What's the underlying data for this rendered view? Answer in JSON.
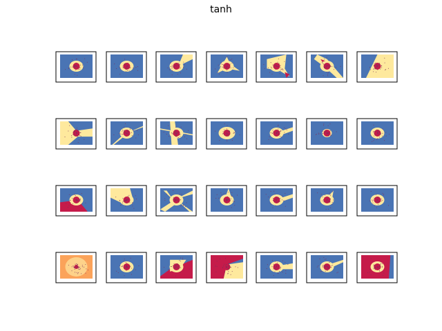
{
  "figure": {
    "title": "tanh"
  },
  "chart_data": {
    "type": "grid",
    "title": "tanh",
    "rows": 4,
    "cols": 7,
    "colors": {
      "region_outer": "#4a74b4",
      "region_boundary": "#fee99d",
      "region_center": "#c51b4a",
      "region_orange": "#fba35a",
      "points": "#7d2f5a"
    },
    "panels": [
      {
        "kind": "ring"
      },
      {
        "kind": "ring_irregular"
      },
      {
        "kind": "ring_wedge_top_right"
      },
      {
        "kind": "ring_star"
      },
      {
        "kind": "ring_cross"
      },
      {
        "kind": "ring_diagonal_band"
      },
      {
        "kind": "yellow_wedge"
      },
      {
        "kind": "yellow_cross"
      },
      {
        "kind": "ring_rays"
      },
      {
        "kind": "ring_tilted_bar"
      },
      {
        "kind": "ring_blob"
      },
      {
        "kind": "ring_tail"
      },
      {
        "kind": "ring_small"
      },
      {
        "kind": "ring"
      },
      {
        "kind": "ring_red_bottom"
      },
      {
        "kind": "ring_yellow_top"
      },
      {
        "kind": "ring_multi_ray"
      },
      {
        "kind": "ring_spike"
      },
      {
        "kind": "ring_tail"
      },
      {
        "kind": "ring_small_spike"
      },
      {
        "kind": "ring"
      },
      {
        "kind": "orange_full"
      },
      {
        "kind": "ring"
      },
      {
        "kind": "red_wedge_bottom"
      },
      {
        "kind": "red_split"
      },
      {
        "kind": "ring_bar_right"
      },
      {
        "kind": "ring_tail_right"
      },
      {
        "kind": "red_full_ring"
      }
    ]
  }
}
